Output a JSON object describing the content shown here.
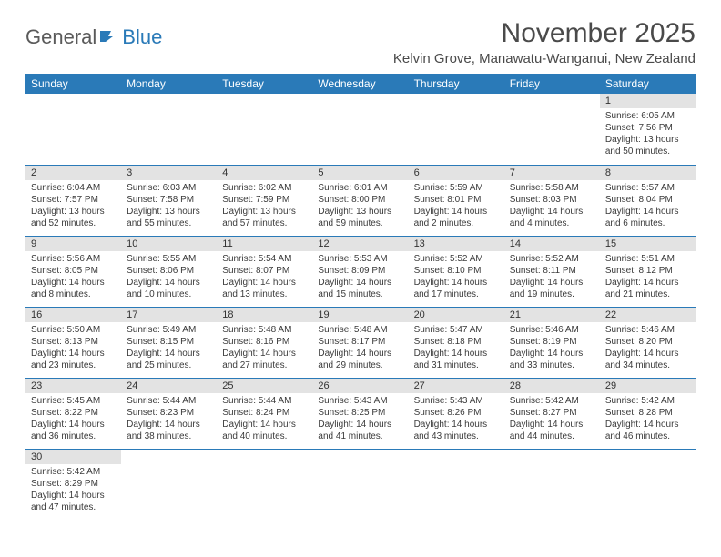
{
  "logo": {
    "general": "General",
    "blue": "Blue"
  },
  "header": {
    "month_title": "November 2025",
    "location": "Kelvin Grove, Manawatu-Wanganui, New Zealand"
  },
  "day_headers": [
    "Sunday",
    "Monday",
    "Tuesday",
    "Wednesday",
    "Thursday",
    "Friday",
    "Saturday"
  ],
  "colors": {
    "header_bg": "#2a7ab8",
    "header_fg": "#ffffff",
    "daynum_bg": "#e3e3e3",
    "border": "#2a7ab8",
    "text": "#3a3a3a",
    "title": "#4a4a4a"
  },
  "weeks": [
    [
      {
        "n": "",
        "sr": "",
        "ss": "",
        "dl": ""
      },
      {
        "n": "",
        "sr": "",
        "ss": "",
        "dl": ""
      },
      {
        "n": "",
        "sr": "",
        "ss": "",
        "dl": ""
      },
      {
        "n": "",
        "sr": "",
        "ss": "",
        "dl": ""
      },
      {
        "n": "",
        "sr": "",
        "ss": "",
        "dl": ""
      },
      {
        "n": "",
        "sr": "",
        "ss": "",
        "dl": ""
      },
      {
        "n": "1",
        "sr": "Sunrise: 6:05 AM",
        "ss": "Sunset: 7:56 PM",
        "dl": "Daylight: 13 hours and 50 minutes."
      }
    ],
    [
      {
        "n": "2",
        "sr": "Sunrise: 6:04 AM",
        "ss": "Sunset: 7:57 PM",
        "dl": "Daylight: 13 hours and 52 minutes."
      },
      {
        "n": "3",
        "sr": "Sunrise: 6:03 AM",
        "ss": "Sunset: 7:58 PM",
        "dl": "Daylight: 13 hours and 55 minutes."
      },
      {
        "n": "4",
        "sr": "Sunrise: 6:02 AM",
        "ss": "Sunset: 7:59 PM",
        "dl": "Daylight: 13 hours and 57 minutes."
      },
      {
        "n": "5",
        "sr": "Sunrise: 6:01 AM",
        "ss": "Sunset: 8:00 PM",
        "dl": "Daylight: 13 hours and 59 minutes."
      },
      {
        "n": "6",
        "sr": "Sunrise: 5:59 AM",
        "ss": "Sunset: 8:01 PM",
        "dl": "Daylight: 14 hours and 2 minutes."
      },
      {
        "n": "7",
        "sr": "Sunrise: 5:58 AM",
        "ss": "Sunset: 8:03 PM",
        "dl": "Daylight: 14 hours and 4 minutes."
      },
      {
        "n": "8",
        "sr": "Sunrise: 5:57 AM",
        "ss": "Sunset: 8:04 PM",
        "dl": "Daylight: 14 hours and 6 minutes."
      }
    ],
    [
      {
        "n": "9",
        "sr": "Sunrise: 5:56 AM",
        "ss": "Sunset: 8:05 PM",
        "dl": "Daylight: 14 hours and 8 minutes."
      },
      {
        "n": "10",
        "sr": "Sunrise: 5:55 AM",
        "ss": "Sunset: 8:06 PM",
        "dl": "Daylight: 14 hours and 10 minutes."
      },
      {
        "n": "11",
        "sr": "Sunrise: 5:54 AM",
        "ss": "Sunset: 8:07 PM",
        "dl": "Daylight: 14 hours and 13 minutes."
      },
      {
        "n": "12",
        "sr": "Sunrise: 5:53 AM",
        "ss": "Sunset: 8:09 PM",
        "dl": "Daylight: 14 hours and 15 minutes."
      },
      {
        "n": "13",
        "sr": "Sunrise: 5:52 AM",
        "ss": "Sunset: 8:10 PM",
        "dl": "Daylight: 14 hours and 17 minutes."
      },
      {
        "n": "14",
        "sr": "Sunrise: 5:52 AM",
        "ss": "Sunset: 8:11 PM",
        "dl": "Daylight: 14 hours and 19 minutes."
      },
      {
        "n": "15",
        "sr": "Sunrise: 5:51 AM",
        "ss": "Sunset: 8:12 PM",
        "dl": "Daylight: 14 hours and 21 minutes."
      }
    ],
    [
      {
        "n": "16",
        "sr": "Sunrise: 5:50 AM",
        "ss": "Sunset: 8:13 PM",
        "dl": "Daylight: 14 hours and 23 minutes."
      },
      {
        "n": "17",
        "sr": "Sunrise: 5:49 AM",
        "ss": "Sunset: 8:15 PM",
        "dl": "Daylight: 14 hours and 25 minutes."
      },
      {
        "n": "18",
        "sr": "Sunrise: 5:48 AM",
        "ss": "Sunset: 8:16 PM",
        "dl": "Daylight: 14 hours and 27 minutes."
      },
      {
        "n": "19",
        "sr": "Sunrise: 5:48 AM",
        "ss": "Sunset: 8:17 PM",
        "dl": "Daylight: 14 hours and 29 minutes."
      },
      {
        "n": "20",
        "sr": "Sunrise: 5:47 AM",
        "ss": "Sunset: 8:18 PM",
        "dl": "Daylight: 14 hours and 31 minutes."
      },
      {
        "n": "21",
        "sr": "Sunrise: 5:46 AM",
        "ss": "Sunset: 8:19 PM",
        "dl": "Daylight: 14 hours and 33 minutes."
      },
      {
        "n": "22",
        "sr": "Sunrise: 5:46 AM",
        "ss": "Sunset: 8:20 PM",
        "dl": "Daylight: 14 hours and 34 minutes."
      }
    ],
    [
      {
        "n": "23",
        "sr": "Sunrise: 5:45 AM",
        "ss": "Sunset: 8:22 PM",
        "dl": "Daylight: 14 hours and 36 minutes."
      },
      {
        "n": "24",
        "sr": "Sunrise: 5:44 AM",
        "ss": "Sunset: 8:23 PM",
        "dl": "Daylight: 14 hours and 38 minutes."
      },
      {
        "n": "25",
        "sr": "Sunrise: 5:44 AM",
        "ss": "Sunset: 8:24 PM",
        "dl": "Daylight: 14 hours and 40 minutes."
      },
      {
        "n": "26",
        "sr": "Sunrise: 5:43 AM",
        "ss": "Sunset: 8:25 PM",
        "dl": "Daylight: 14 hours and 41 minutes."
      },
      {
        "n": "27",
        "sr": "Sunrise: 5:43 AM",
        "ss": "Sunset: 8:26 PM",
        "dl": "Daylight: 14 hours and 43 minutes."
      },
      {
        "n": "28",
        "sr": "Sunrise: 5:42 AM",
        "ss": "Sunset: 8:27 PM",
        "dl": "Daylight: 14 hours and 44 minutes."
      },
      {
        "n": "29",
        "sr": "Sunrise: 5:42 AM",
        "ss": "Sunset: 8:28 PM",
        "dl": "Daylight: 14 hours and 46 minutes."
      }
    ],
    [
      {
        "n": "30",
        "sr": "Sunrise: 5:42 AM",
        "ss": "Sunset: 8:29 PM",
        "dl": "Daylight: 14 hours and 47 minutes."
      },
      {
        "n": "",
        "sr": "",
        "ss": "",
        "dl": ""
      },
      {
        "n": "",
        "sr": "",
        "ss": "",
        "dl": ""
      },
      {
        "n": "",
        "sr": "",
        "ss": "",
        "dl": ""
      },
      {
        "n": "",
        "sr": "",
        "ss": "",
        "dl": ""
      },
      {
        "n": "",
        "sr": "",
        "ss": "",
        "dl": ""
      },
      {
        "n": "",
        "sr": "",
        "ss": "",
        "dl": ""
      }
    ]
  ]
}
